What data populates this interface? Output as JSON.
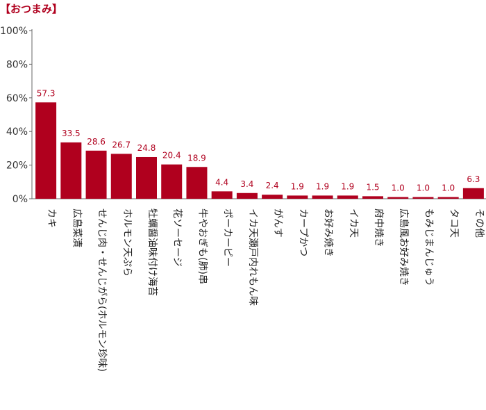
{
  "chart_data": {
    "type": "bar",
    "title": "【おつまみ】",
    "categories": [
      "カキ",
      "広島菜漬",
      "せんじ肉・せんじがら(ホルモン珍味)",
      "ホルモン天ぷら",
      "牡蠣醤油味付け海苔",
      "花ソーセージ",
      "牛やおぎも(肺)串",
      "ポーカーピー",
      "イカ天瀬戸内れもん味",
      "がんす",
      "カープかつ",
      "お好み焼き",
      "イカ天",
      "府中焼き",
      "広島風お好み焼き",
      "もみじまんじゅう",
      "タコ天",
      "その他"
    ],
    "values": [
      57.3,
      33.5,
      28.6,
      26.7,
      24.8,
      20.4,
      18.9,
      4.4,
      3.4,
      2.4,
      1.9,
      1.9,
      1.9,
      1.5,
      1.0,
      1.0,
      1.0,
      6.3
    ],
    "value_labels": [
      "57.3",
      "33.5",
      "28.6",
      "26.7",
      "24.8",
      "20.4",
      "18.9",
      "4.4",
      "3.4",
      "2.4",
      "1.9",
      "1.9",
      "1.9",
      "1.5",
      "1.0",
      "1.0",
      "1.0",
      "6.3"
    ],
    "ylim": [
      0,
      100
    ],
    "yticks": [
      0,
      20,
      40,
      60,
      80,
      100
    ],
    "ytick_labels": [
      "0%",
      "20%",
      "40%",
      "60%",
      "80%",
      "100%"
    ],
    "xlabel": "",
    "ylabel": "",
    "grid": false,
    "bar_color": "#b0001e",
    "title_color": "#b0001e",
    "label_color": "#b0001e"
  }
}
